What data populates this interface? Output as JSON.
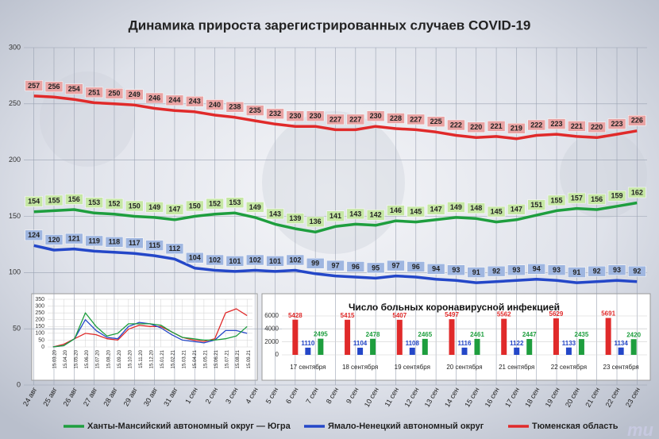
{
  "chart_data": [
    {
      "type": "line",
      "title": "Динамика прироста зарегистрированных случаев COVID-19",
      "categories": [
        "24 авг",
        "25 авг",
        "26 авг",
        "27 авг",
        "28 авг",
        "29 авг",
        "30 авг",
        "31 авг",
        "1 сен",
        "2 сен",
        "3 сен",
        "4 сен",
        "5 сен",
        "6 сен",
        "7 сен",
        "8 сен",
        "9 сен",
        "10 сен",
        "11 сен",
        "12 сен",
        "13 сен",
        "14 сен",
        "15 сен",
        "16 сен",
        "17 сен",
        "18 сен",
        "19 сен",
        "20 сен",
        "21 сен",
        "22 сен",
        "23 сен"
      ],
      "series": [
        {
          "name": "Ханты-Мансийский автономный округ — Югра",
          "color": "#1e9e3e",
          "label_color": "#c6e7a4",
          "values": [
            154,
            155,
            156,
            153,
            152,
            150,
            149,
            147,
            150,
            152,
            153,
            149,
            143,
            139,
            136,
            141,
            143,
            142,
            146,
            145,
            147,
            149,
            148,
            145,
            147,
            151,
            155,
            157,
            156,
            159,
            162
          ]
        },
        {
          "name": "Ямало-Ненецкий автономный округ",
          "color": "#2447c8",
          "label_color": "#9fb6e0",
          "values": [
            124,
            120,
            121,
            119,
            118,
            117,
            115,
            112,
            104,
            102,
            101,
            102,
            101,
            102,
            99,
            97,
            96,
            95,
            97,
            96,
            94,
            93,
            91,
            92,
            93,
            94,
            93,
            91,
            92,
            93,
            92
          ]
        },
        {
          "name": "Тюменская область",
          "color": "#e02a2a",
          "label_color": "#e9a3a3",
          "values": [
            257,
            256,
            254,
            251,
            250,
            249,
            246,
            244,
            243,
            240,
            238,
            235,
            232,
            230,
            230,
            227,
            227,
            230,
            228,
            227,
            225,
            222,
            220,
            221,
            219,
            222,
            223,
            221,
            220,
            223,
            226
          ]
        }
      ],
      "ylim": [
        0,
        300
      ],
      "yticks": [
        0,
        50,
        100,
        150,
        200,
        250,
        300
      ],
      "grid": true,
      "legend": "bottom"
    },
    {
      "type": "line",
      "categories": [
        "15.03.20",
        "15.04.20",
        "15.05.20",
        "15.06.20",
        "15.07.20",
        "15.08.20",
        "15.09.20",
        "15.10.20",
        "15.11.20",
        "15.12.20",
        "15.01.21",
        "15.02.21",
        "15.03.21",
        "15.04.21",
        "15.05.21",
        "15.06.21",
        "15.07.21",
        "15.08.21",
        "15.09.21"
      ],
      "series": [
        {
          "color": "#e02a2a",
          "values": [
            0,
            20,
            60,
            100,
            90,
            60,
            50,
            130,
            160,
            150,
            150,
            110,
            70,
            50,
            40,
            60,
            250,
            280,
            230
          ]
        },
        {
          "color": "#2447c8",
          "values": [
            0,
            10,
            60,
            200,
            120,
            70,
            60,
            150,
            180,
            170,
            140,
            90,
            50,
            40,
            30,
            50,
            120,
            120,
            100
          ]
        },
        {
          "color": "#1e9e3e",
          "values": [
            0,
            10,
            60,
            250,
            150,
            80,
            100,
            170,
            170,
            170,
            160,
            110,
            70,
            60,
            50,
            50,
            60,
            80,
            150
          ]
        }
      ],
      "ylim": [
        0,
        350
      ],
      "yticks": [
        0,
        50,
        100,
        150,
        200,
        250,
        300,
        350
      ],
      "grid": true
    },
    {
      "type": "bar",
      "title": "Число больных коронавирусной инфекцией",
      "categories": [
        "17 сентября",
        "18 сентября",
        "19 сентября",
        "20 сентября",
        "21 сентября",
        "22 сентября",
        "23 сентября"
      ],
      "series": [
        {
          "color": "#e02a2a",
          "values": [
            5428,
            5415,
            5407,
            5497,
            5562,
            5629,
            5691
          ]
        },
        {
          "color": "#2447c8",
          "values": [
            1110,
            1104,
            1108,
            1116,
            1122,
            1133,
            1134
          ]
        },
        {
          "color": "#1e9e3e",
          "values": [
            2495,
            2478,
            2465,
            2461,
            2447,
            2435,
            2420
          ]
        }
      ],
      "ylim": [
        0,
        6000
      ],
      "yticks": [
        0,
        2000,
        4000,
        6000
      ],
      "grid": true
    }
  ]
}
